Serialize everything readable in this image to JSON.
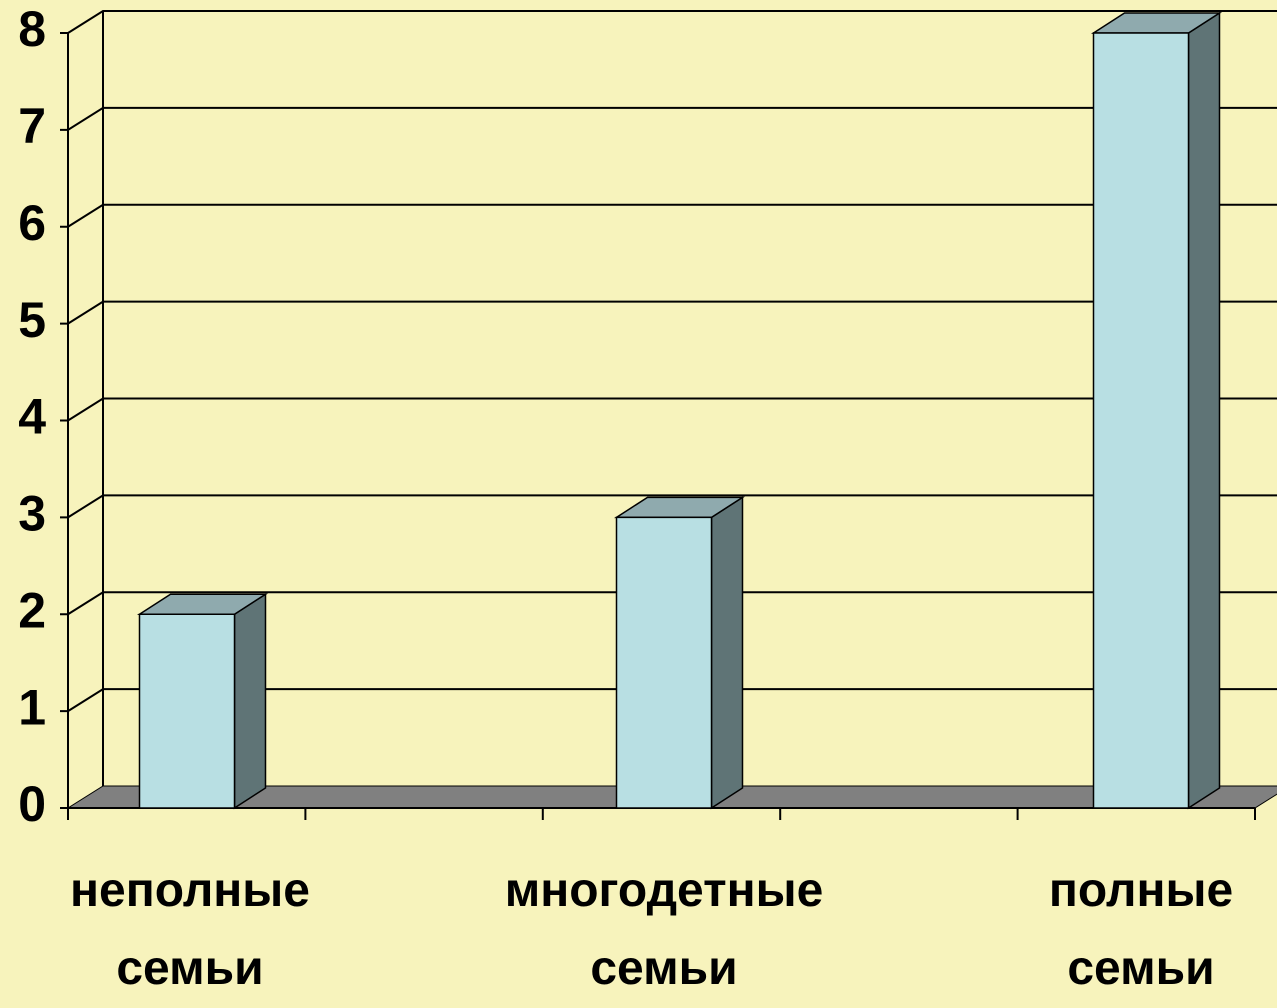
{
  "chart_data": {
    "type": "bar",
    "categories": [
      "неполные семьи",
      "многодетные семьи",
      "полные семьи"
    ],
    "values": [
      2,
      3,
      8
    ],
    "color": "#b8dfe3",
    "ylim": [
      0,
      8
    ],
    "yticks": [
      0,
      1,
      2,
      3,
      4,
      5,
      6,
      7,
      8
    ],
    "grid": true
  }
}
